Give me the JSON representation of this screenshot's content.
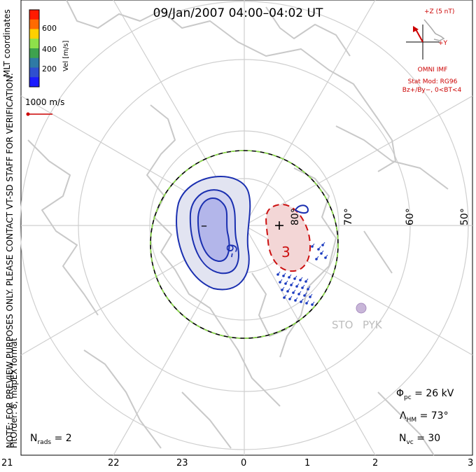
{
  "title": "09/Jan/2007 04:00–04:02 UT",
  "side_note": "NOTE: FOR PREVIEW PURPOSES ONLY. PLEASE CONTACT VT-SD STAFF FOR VERIFICATION.",
  "fit_order": "FitOrder: 8, mapEX format",
  "coordinates_label": "MLT coordinates",
  "color_scale": {
    "label": "Vel [m/s]",
    "ticks": [
      "600",
      "400",
      "200"
    ],
    "colors": [
      "#ff1a00",
      "#ff6a00",
      "#ffd000",
      "#8ee04a",
      "#3ea24e",
      "#2f7aa5",
      "#2f4fd0",
      "#1b1bff"
    ]
  },
  "velocity_reference": "1000 m/s",
  "imf": {
    "scale_label": "+Z (5 nT)",
    "y_label": "+Y",
    "source": "OMNI IMF",
    "model": "Stat Mod: RG96",
    "condition": "Bz+/By−, 0<BT<4"
  },
  "latitude_labels": [
    "80°",
    "70°",
    "60°",
    "50°"
  ],
  "mlt_ticks": [
    "21",
    "22",
    "23",
    "0",
    "1",
    "2",
    "3"
  ],
  "stations": [
    "STO",
    "PYK"
  ],
  "contours": {
    "negative_symbol": "–",
    "positive_symbol": "+",
    "negative_value": "-9",
    "positive_value": "3"
  },
  "stats": {
    "phi_symbol": "Φ",
    "phi_sub": "pc",
    "phi_value": "= 26 kV",
    "lambda_symbol": "Λ",
    "lambda_sub": "HM",
    "lambda_value": "= 73°",
    "nvc_symbol": "N",
    "nvc_sub": "vc",
    "nvc_value": "= 30",
    "nrads_symbol": "N",
    "nrads_sub": "rads",
    "nrads_value": "= 2"
  },
  "colors": {
    "negative_line": "#1a2fb0",
    "negative_fill_outer": "#e2e4f1",
    "negative_fill_inner": "#b3b6ea",
    "positive_line": "#cc1111",
    "positive_fill": "#f3d6d6",
    "boundary_green": "#8ee04a",
    "coast": "#c9c9c9",
    "grid": "#cfcfcf",
    "vectors": "#1a3ac0"
  }
}
